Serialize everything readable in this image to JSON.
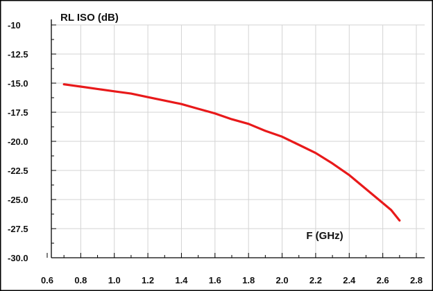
{
  "chart_data": {
    "type": "line",
    "ylabel": "RL ISO (dB)",
    "xlabel": "F (GHz)",
    "xlim": [
      0.6,
      2.8
    ],
    "ylim": [
      -30,
      -10
    ],
    "x_ticks": [
      0.6,
      0.8,
      1.0,
      1.2,
      1.4,
      1.6,
      1.8,
      2.0,
      2.2,
      2.4,
      2.6,
      2.8
    ],
    "x_tick_labels": [
      "0.6",
      "0.8",
      "1.0",
      "1.2",
      "1.4",
      "1.6",
      "1.8",
      "2.0",
      "2.2",
      "2.4",
      "2.6",
      "2.8"
    ],
    "y_ticks": [
      -10,
      -12.5,
      -15,
      -17.5,
      -20,
      -22.5,
      -25,
      -27.5,
      -30
    ],
    "y_tick_labels": [
      "-10",
      "-12.5",
      "-15.0",
      "-17.5",
      "-20.0",
      "-22.5",
      "-25.0",
      "-27.5",
      "-30.0"
    ],
    "grid": true,
    "colors": {
      "series": "#e8191a",
      "grid": "#d3d3d3",
      "axis": "#000000"
    },
    "series": [
      {
        "x": [
          0.7,
          0.8,
          0.9,
          1.0,
          1.1,
          1.2,
          1.3,
          1.4,
          1.5,
          1.6,
          1.7,
          1.8,
          1.9,
          2.0,
          2.1,
          2.2,
          2.3,
          2.4,
          2.5,
          2.6,
          2.65,
          2.7
        ],
        "y": [
          -15.1,
          -15.3,
          -15.5,
          -15.7,
          -15.9,
          -16.2,
          -16.5,
          -16.8,
          -17.2,
          -17.6,
          -18.1,
          -18.5,
          -19.1,
          -19.6,
          -20.3,
          -21.0,
          -21.9,
          -22.9,
          -24.1,
          -25.3,
          -25.9,
          -26.8
        ]
      }
    ]
  }
}
